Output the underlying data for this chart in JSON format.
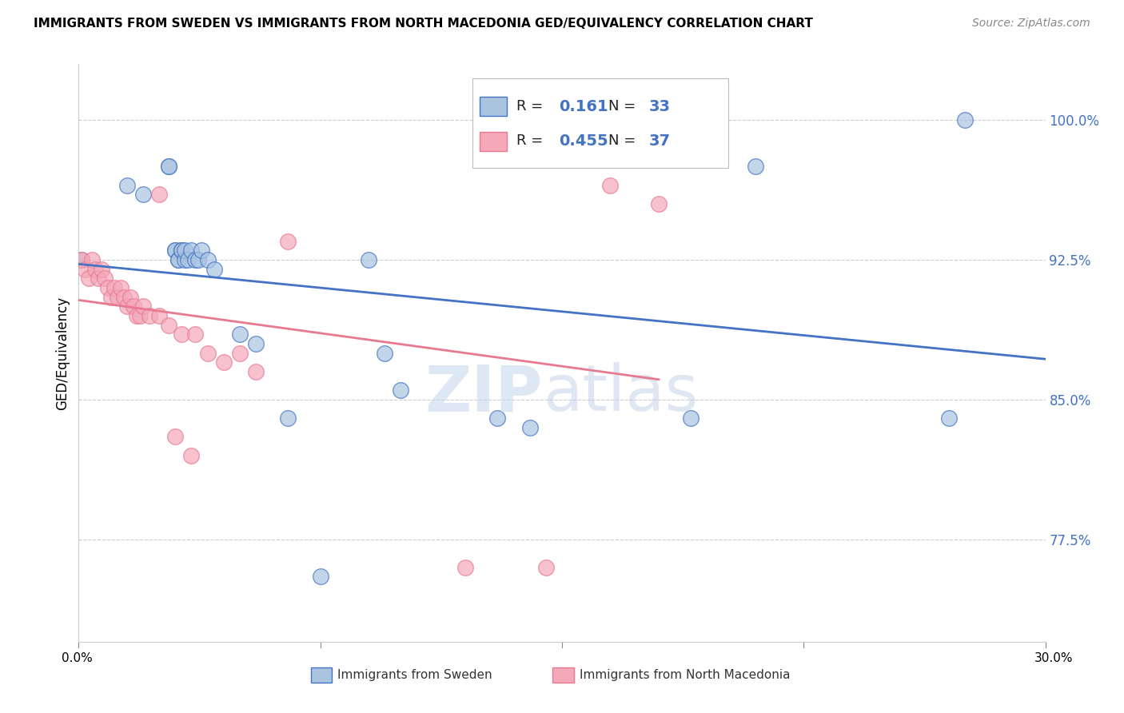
{
  "title": "IMMIGRANTS FROM SWEDEN VS IMMIGRANTS FROM NORTH MACEDONIA GED/EQUIVALENCY CORRELATION CHART",
  "source": "Source: ZipAtlas.com",
  "ylabel": "GED/Equivalency",
  "xlim": [
    0.0,
    0.3
  ],
  "ylim": [
    0.72,
    1.03
  ],
  "yticks": [
    0.775,
    0.85,
    0.925,
    1.0
  ],
  "ytick_labels": [
    "77.5%",
    "85.0%",
    "92.5%",
    "100.0%"
  ],
  "sweden_R": 0.161,
  "sweden_N": 33,
  "macedonia_R": 0.455,
  "macedonia_N": 37,
  "sweden_color": "#aac4e0",
  "macedonia_color": "#f4a8b8",
  "sweden_line_color": "#4472c4",
  "macedonia_line_color": "#e87a90",
  "legend_label_sweden": "Immigrants from Sweden",
  "legend_label_macedonia": "Immigrants from North Macedonia",
  "sweden_x": [
    0.001,
    0.015,
    0.02,
    0.028,
    0.028,
    0.03,
    0.03,
    0.031,
    0.031,
    0.032,
    0.032,
    0.033,
    0.033,
    0.034,
    0.035,
    0.036,
    0.037,
    0.038,
    0.04,
    0.042,
    0.05,
    0.055,
    0.065,
    0.075,
    0.09,
    0.095,
    0.1,
    0.13,
    0.14,
    0.19,
    0.21,
    0.27,
    0.275
  ],
  "sweden_y": [
    0.925,
    0.965,
    0.96,
    0.975,
    0.975,
    0.93,
    0.93,
    0.925,
    0.925,
    0.93,
    0.93,
    0.925,
    0.93,
    0.925,
    0.93,
    0.925,
    0.925,
    0.93,
    0.925,
    0.92,
    0.885,
    0.88,
    0.84,
    0.755,
    0.925,
    0.875,
    0.855,
    0.84,
    0.835,
    0.84,
    0.975,
    0.84,
    1.0
  ],
  "macedonia_x": [
    0.001,
    0.002,
    0.003,
    0.004,
    0.005,
    0.006,
    0.007,
    0.008,
    0.009,
    0.01,
    0.011,
    0.012,
    0.013,
    0.014,
    0.015,
    0.016,
    0.017,
    0.018,
    0.019,
    0.02,
    0.022,
    0.025,
    0.028,
    0.032,
    0.036,
    0.04,
    0.045,
    0.05,
    0.055,
    0.065,
    0.12,
    0.145,
    0.165,
    0.18,
    0.025,
    0.03,
    0.035
  ],
  "macedonia_y": [
    0.925,
    0.92,
    0.915,
    0.925,
    0.92,
    0.915,
    0.92,
    0.915,
    0.91,
    0.905,
    0.91,
    0.905,
    0.91,
    0.905,
    0.9,
    0.905,
    0.9,
    0.895,
    0.895,
    0.9,
    0.895,
    0.895,
    0.89,
    0.885,
    0.885,
    0.875,
    0.87,
    0.875,
    0.865,
    0.935,
    0.76,
    0.76,
    0.965,
    0.955,
    0.96,
    0.83,
    0.82
  ]
}
